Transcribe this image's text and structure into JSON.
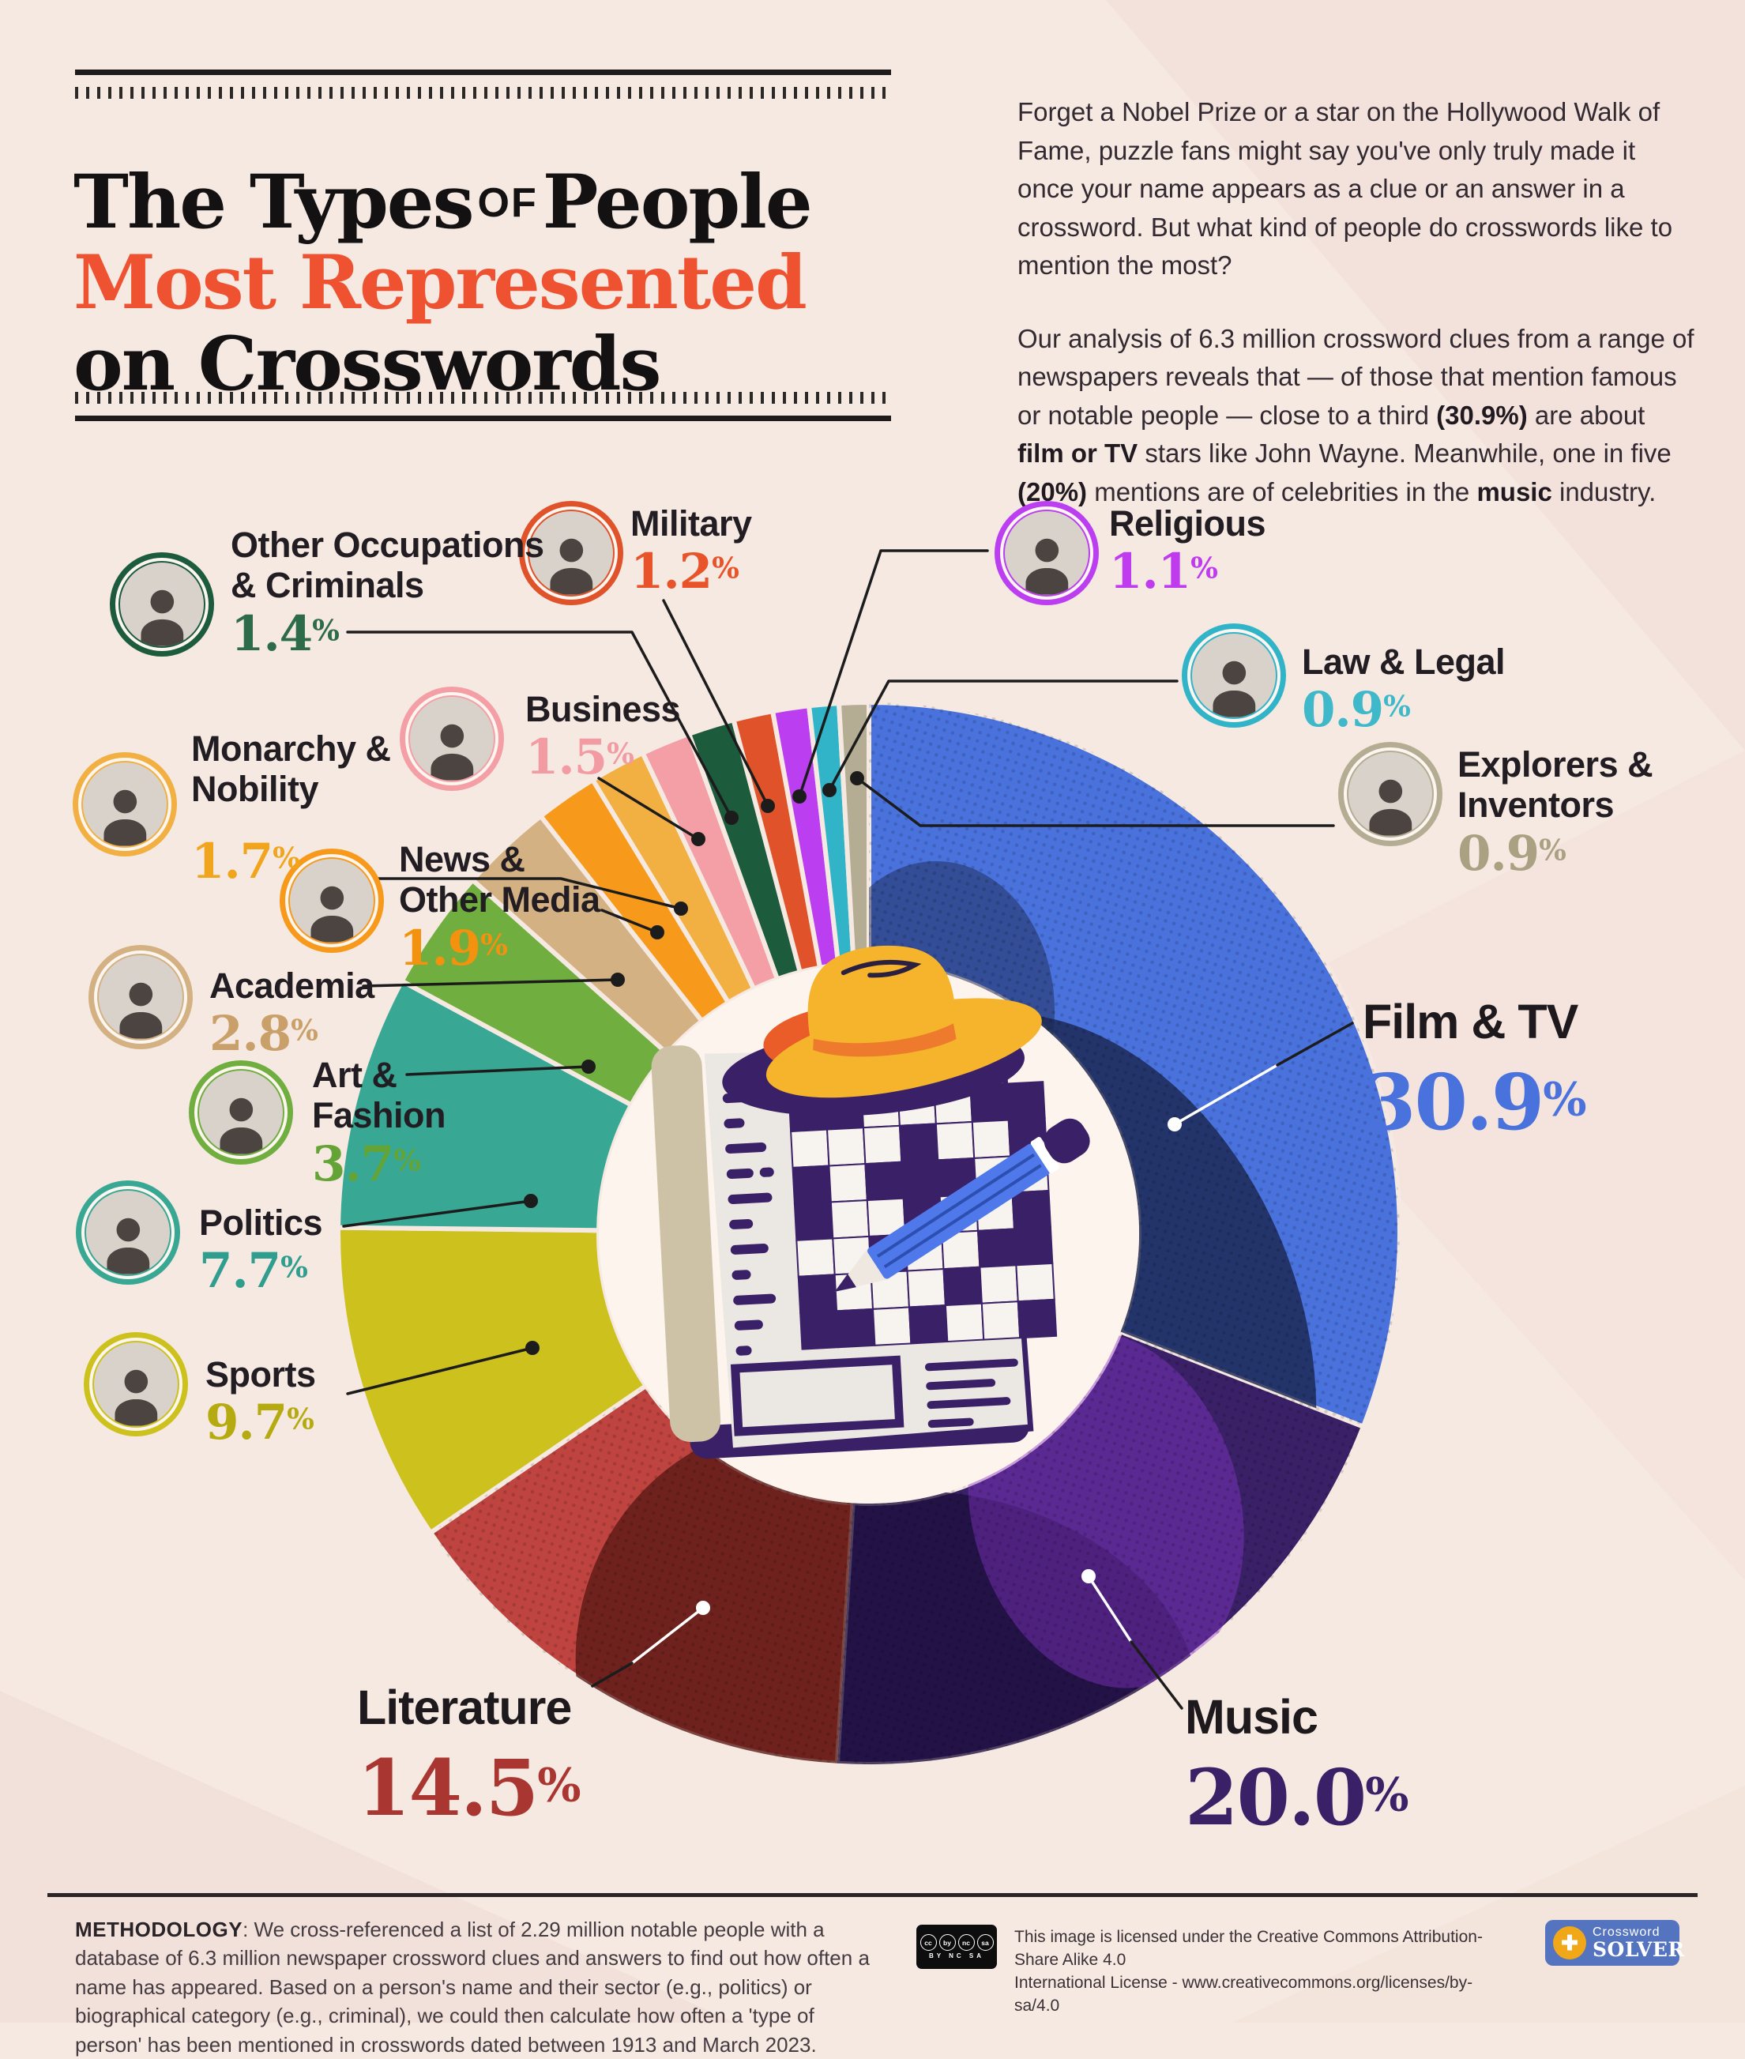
{
  "header": {
    "title_line1_pre": "The Types",
    "title_line1_of": "of",
    "title_line1_post": "People",
    "title_line2": "Most Represented",
    "title_line3": "on Crosswords",
    "accent_color": "#ee5231",
    "intro_p1": "Forget a Nobel Prize or a star on the Hollywood Walk of Fame, puzzle fans might say you've only truly made it once your name appears as a clue or an answer in a crossword. But what kind of people do crosswords like to mention the most?",
    "intro_p2": {
      "s1": "Our analysis of 6.3 million crossword clues from a range of newspapers reveals that — of those that mention famous or notable people — close to a third ",
      "s2": "(30.9%)",
      "s3": " are about ",
      "s4": "film or TV",
      "s5": " stars like John Wayne. Meanwhile, one in five ",
      "s6": "(20%)",
      "s7": " mentions are of celebrities in the ",
      "s8": "music",
      "s9": " industry."
    }
  },
  "chart_data": {
    "type": "pie",
    "title": "The Types of People Most Represented on Crosswords",
    "unit": "%",
    "legend_position": "around",
    "percent_sign": "%",
    "categories": [
      {
        "label": "Film & TV",
        "label_line1": "Film & TV",
        "label_line2": "",
        "value": 30.9,
        "display": "30.9",
        "color": "#4a72dd",
        "text_color": "#4a72dd"
      },
      {
        "label": "Music",
        "label_line1": "Music",
        "label_line2": "",
        "value": 20.0,
        "display": "20.0",
        "color": "#3a2066",
        "text_color": "#3a2066"
      },
      {
        "label": "Literature",
        "label_line1": "Literature",
        "label_line2": "",
        "value": 14.5,
        "display": "14.5",
        "color": "#bf4440",
        "text_color": "#a93630"
      },
      {
        "label": "Sports",
        "label_line1": "Sports",
        "label_line2": "",
        "value": 9.7,
        "display": "9.7",
        "color": "#cdc11e",
        "text_color": "#b5ab10"
      },
      {
        "label": "Politics",
        "label_line1": "Politics",
        "label_line2": "",
        "value": 7.7,
        "display": "7.7",
        "color": "#38a794",
        "text_color": "#2f9e8e"
      },
      {
        "label": "Art & Fashion",
        "label_line1": "Art &",
        "label_line2": "Fashion",
        "value": 3.7,
        "display": "3.7",
        "color": "#6fae3f",
        "text_color": "#64a335"
      },
      {
        "label": "Academia",
        "label_line1": "Academia",
        "label_line2": "",
        "value": 2.8,
        "display": "2.8",
        "color": "#d4b183",
        "text_color": "#c9a06a"
      },
      {
        "label": "News & Other Media",
        "label_line1": "News &",
        "label_line2": "Other Media",
        "value": 1.9,
        "display": "1.9",
        "color": "#f79a1c",
        "text_color": "#f2920f"
      },
      {
        "label": "Monarchy & Nobility",
        "label_line1": "Monarchy &",
        "label_line2": "Nobility",
        "value": 1.7,
        "display": "1.7",
        "color": "#f2b043",
        "text_color": "#f0a51c"
      },
      {
        "label": "Business",
        "label_line1": "Business",
        "label_line2": "",
        "value": 1.5,
        "display": "1.5",
        "color": "#f49fa6",
        "text_color": "#f29ba3"
      },
      {
        "label": "Other Occupations & Criminals",
        "label_line1": "Other Occupations",
        "label_line2": "& Criminals",
        "value": 1.4,
        "display": "1.4",
        "color": "#1d5b3d",
        "text_color": "#2d6b4a"
      },
      {
        "label": "Military",
        "label_line1": "Military",
        "label_line2": "",
        "value": 1.2,
        "display": "1.2",
        "color": "#e0522a",
        "text_color": "#e8532a"
      },
      {
        "label": "Religious",
        "label_line1": "Religious",
        "label_line2": "",
        "value": 1.1,
        "display": "1.1",
        "color": "#bb3ff0",
        "text_color": "#c13bee"
      },
      {
        "label": "Law & Legal",
        "label_line1": "Law & Legal",
        "label_line2": "",
        "value": 0.9,
        "display": "0.9",
        "color": "#31b4c8",
        "text_color": "#3fb9c9"
      },
      {
        "label": "Explorers & Inventors",
        "label_line1": "Explorers &",
        "label_line2": "Inventors",
        "value": 0.9,
        "display": "0.9",
        "color": "#b5ad93",
        "text_color": "#aaa183"
      }
    ]
  },
  "footer": {
    "methodology_label": "METHODOLOGY",
    "methodology_text": ": We cross-referenced a list of 2.29 million notable people with a database of 6.3 million newspaper crossword clues and answers to find out how often a name has appeared. Based on a person's name and their sector (e.g., politics) or biographical category (e.g., criminal), we could then calculate how often a 'type of person' has been mentioned in crosswords dated between 1913 and March 2023.",
    "license_line1": "This image is licensed under the Creative Commons Attribution-Share Alike 4.0",
    "license_line2": "International License - www.creativecommons.org/licenses/by-sa/4.0",
    "cc_circles": {
      "c1": "cc",
      "c2": "by",
      "c3": "nc",
      "c4": "sa"
    },
    "cc_sub": "BY NC SA",
    "logo": {
      "line1": "Crossword",
      "line2": "SOLVER",
      "icon": "✚"
    }
  }
}
